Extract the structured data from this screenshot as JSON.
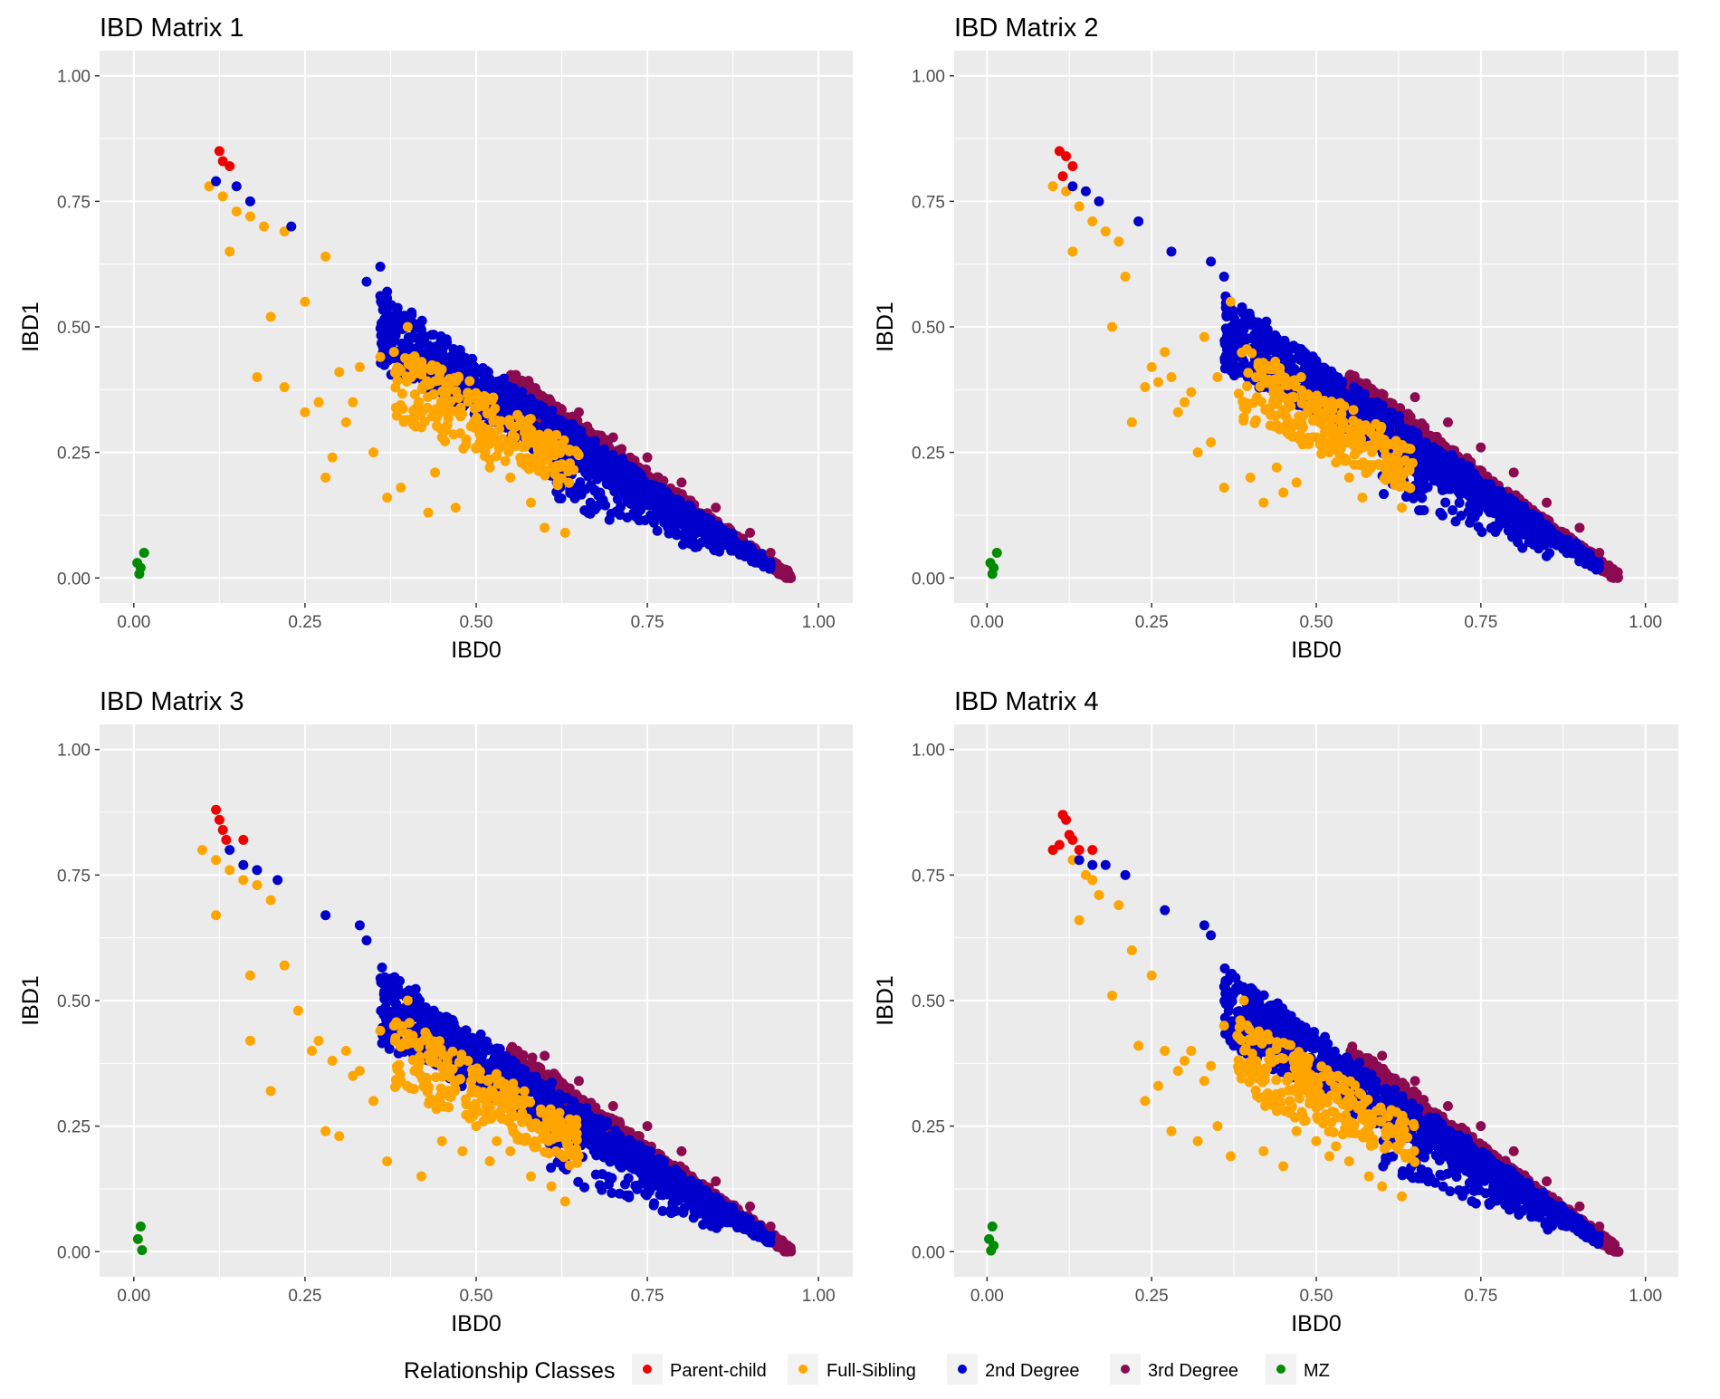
{
  "chart_data": [
    {
      "type": "scatter",
      "title": "IBD Matrix 1",
      "xlabel": "IBD0",
      "ylabel": "IBD1",
      "xlim": [
        -0.05,
        1.05
      ],
      "ylim": [
        -0.05,
        1.05
      ],
      "xticks": [
        0.0,
        0.25,
        0.5,
        0.75,
        1.0
      ],
      "xtick_labels": [
        "0.00",
        "0.25",
        "0.50",
        "0.75",
        "1.00"
      ],
      "yticks": [
        0.0,
        0.25,
        0.5,
        0.75,
        1.0
      ],
      "ytick_labels": [
        "0.00",
        "0.25",
        "0.50",
        "0.75",
        "1.00"
      ],
      "grid": true,
      "series": [
        {
          "name": "Parent-child",
          "x": [
            0.125,
            0.13,
            0.14
          ],
          "y": [
            0.85,
            0.83,
            0.82
          ]
        },
        {
          "name": "Full-Sibling",
          "x": [
            0.11,
            0.13,
            0.15,
            0.17,
            0.19,
            0.22,
            0.14,
            0.28,
            0.25,
            0.2,
            0.18,
            0.3,
            0.32,
            0.25,
            0.22,
            0.28,
            0.35,
            0.37,
            0.4,
            0.42,
            0.45,
            0.5,
            0.52,
            0.47,
            0.55,
            0.58,
            0.6,
            0.63,
            0.38,
            0.43,
            0.29,
            0.33,
            0.36,
            0.31,
            0.27,
            0.39,
            0.46,
            0.51,
            0.53,
            0.44
          ],
          "y": [
            0.78,
            0.76,
            0.73,
            0.72,
            0.7,
            0.69,
            0.65,
            0.64,
            0.55,
            0.52,
            0.4,
            0.41,
            0.35,
            0.33,
            0.38,
            0.2,
            0.25,
            0.16,
            0.5,
            0.3,
            0.28,
            0.26,
            0.22,
            0.14,
            0.2,
            0.15,
            0.1,
            0.09,
            0.45,
            0.13,
            0.24,
            0.42,
            0.44,
            0.31,
            0.35,
            0.18,
            0.33,
            0.3,
            0.27,
            0.21
          ]
        },
        {
          "name": "2nd Degree",
          "x": [
            0.12,
            0.15,
            0.17,
            0.23,
            0.36,
            0.34,
            0.37
          ],
          "y": [
            0.79,
            0.78,
            0.75,
            0.7,
            0.62,
            0.59,
            0.57
          ]
        },
        {
          "name": "3rd Degree",
          "x": [
            0.65,
            0.7,
            0.75,
            0.8,
            0.85,
            0.9,
            0.93,
            0.95
          ],
          "y": [
            0.33,
            0.28,
            0.24,
            0.19,
            0.14,
            0.09,
            0.05,
            0.01
          ]
        },
        {
          "name": "MZ",
          "x": [
            0.005,
            0.01,
            0.015,
            0.008
          ],
          "y": [
            0.03,
            0.02,
            0.05,
            0.008
          ]
        }
      ]
    },
    {
      "type": "scatter",
      "title": "IBD Matrix 2",
      "xlabel": "IBD0",
      "ylabel": "IBD1",
      "xlim": [
        -0.05,
        1.05
      ],
      "ylim": [
        -0.05,
        1.05
      ],
      "xticks": [
        0.0,
        0.25,
        0.5,
        0.75,
        1.0
      ],
      "xtick_labels": [
        "0.00",
        "0.25",
        "0.50",
        "0.75",
        "1.00"
      ],
      "yticks": [
        0.0,
        0.25,
        0.5,
        0.75,
        1.0
      ],
      "ytick_labels": [
        "0.00",
        "0.25",
        "0.50",
        "0.75",
        "1.00"
      ],
      "grid": true,
      "series": [
        {
          "name": "Parent-child",
          "x": [
            0.11,
            0.12,
            0.13,
            0.115
          ],
          "y": [
            0.85,
            0.84,
            0.82,
            0.8
          ]
        },
        {
          "name": "Full-Sibling",
          "x": [
            0.1,
            0.12,
            0.14,
            0.16,
            0.18,
            0.2,
            0.13,
            0.21,
            0.19,
            0.25,
            0.28,
            0.24,
            0.3,
            0.27,
            0.32,
            0.36,
            0.4,
            0.42,
            0.45,
            0.48,
            0.5,
            0.53,
            0.55,
            0.57,
            0.63,
            0.37,
            0.33,
            0.26,
            0.22,
            0.44,
            0.47,
            0.52,
            0.35,
            0.39,
            0.29,
            0.41,
            0.46,
            0.54,
            0.31,
            0.34
          ],
          "y": [
            0.78,
            0.77,
            0.74,
            0.71,
            0.69,
            0.67,
            0.65,
            0.6,
            0.5,
            0.42,
            0.4,
            0.38,
            0.35,
            0.45,
            0.25,
            0.18,
            0.2,
            0.15,
            0.17,
            0.3,
            0.28,
            0.23,
            0.2,
            0.16,
            0.14,
            0.55,
            0.48,
            0.39,
            0.31,
            0.22,
            0.19,
            0.25,
            0.4,
            0.32,
            0.33,
            0.36,
            0.29,
            0.24,
            0.37,
            0.27
          ]
        },
        {
          "name": "2nd Degree",
          "x": [
            0.13,
            0.15,
            0.17,
            0.23,
            0.28,
            0.34,
            0.36
          ],
          "y": [
            0.78,
            0.77,
            0.75,
            0.71,
            0.65,
            0.63,
            0.6
          ]
        },
        {
          "name": "3rd Degree",
          "x": [
            0.65,
            0.7,
            0.75,
            0.8,
            0.85,
            0.9,
            0.93,
            0.95
          ],
          "y": [
            0.36,
            0.31,
            0.26,
            0.21,
            0.15,
            0.1,
            0.05,
            0.01
          ]
        },
        {
          "name": "MZ",
          "x": [
            0.005,
            0.01,
            0.015,
            0.008
          ],
          "y": [
            0.03,
            0.02,
            0.05,
            0.008
          ]
        }
      ]
    },
    {
      "type": "scatter",
      "title": "IBD Matrix 3",
      "xlabel": "IBD0",
      "ylabel": "IBD1",
      "xlim": [
        -0.05,
        1.05
      ],
      "ylim": [
        -0.05,
        1.05
      ],
      "xticks": [
        0.0,
        0.25,
        0.5,
        0.75,
        1.0
      ],
      "xtick_labels": [
        "0.00",
        "0.25",
        "0.50",
        "0.75",
        "1.00"
      ],
      "yticks": [
        0.0,
        0.25,
        0.5,
        0.75,
        1.0
      ],
      "ytick_labels": [
        "0.00",
        "0.25",
        "0.50",
        "0.75",
        "1.00"
      ],
      "grid": true,
      "series": [
        {
          "name": "Parent-child",
          "x": [
            0.12,
            0.125,
            0.13,
            0.135,
            0.16
          ],
          "y": [
            0.88,
            0.86,
            0.84,
            0.82,
            0.82
          ]
        },
        {
          "name": "Full-Sibling",
          "x": [
            0.1,
            0.12,
            0.14,
            0.16,
            0.18,
            0.2,
            0.12,
            0.17,
            0.22,
            0.24,
            0.2,
            0.17,
            0.26,
            0.28,
            0.3,
            0.32,
            0.35,
            0.37,
            0.4,
            0.42,
            0.45,
            0.48,
            0.5,
            0.52,
            0.55,
            0.58,
            0.61,
            0.63,
            0.38,
            0.44,
            0.29,
            0.33,
            0.36,
            0.39,
            0.27,
            0.46,
            0.49,
            0.53,
            0.31,
            0.41
          ],
          "y": [
            0.8,
            0.78,
            0.76,
            0.74,
            0.73,
            0.7,
            0.67,
            0.55,
            0.57,
            0.48,
            0.32,
            0.42,
            0.4,
            0.24,
            0.23,
            0.35,
            0.3,
            0.18,
            0.5,
            0.15,
            0.22,
            0.2,
            0.25,
            0.18,
            0.2,
            0.15,
            0.13,
            0.1,
            0.45,
            0.3,
            0.38,
            0.36,
            0.44,
            0.34,
            0.42,
            0.31,
            0.27,
            0.22,
            0.4,
            0.36
          ]
        },
        {
          "name": "2nd Degree",
          "x": [
            0.14,
            0.16,
            0.18,
            0.21,
            0.28,
            0.33,
            0.34
          ],
          "y": [
            0.8,
            0.77,
            0.76,
            0.74,
            0.67,
            0.65,
            0.62
          ]
        },
        {
          "name": "3rd Degree",
          "x": [
            0.6,
            0.65,
            0.7,
            0.75,
            0.8,
            0.85,
            0.9,
            0.93,
            0.95
          ],
          "y": [
            0.39,
            0.34,
            0.29,
            0.25,
            0.2,
            0.14,
            0.09,
            0.05,
            0.01
          ]
        },
        {
          "name": "MZ",
          "x": [
            0.006,
            0.01,
            0.012
          ],
          "y": [
            0.025,
            0.05,
            0.003
          ]
        }
      ]
    },
    {
      "type": "scatter",
      "title": "IBD Matrix 4",
      "xlabel": "IBD0",
      "ylabel": "IBD1",
      "xlim": [
        -0.05,
        1.05
      ],
      "ylim": [
        -0.05,
        1.05
      ],
      "xticks": [
        0.0,
        0.25,
        0.5,
        0.75,
        1.0
      ],
      "xtick_labels": [
        "0.00",
        "0.25",
        "0.50",
        "0.75",
        "1.00"
      ],
      "yticks": [
        0.0,
        0.25,
        0.5,
        0.75,
        1.0
      ],
      "ytick_labels": [
        "0.00",
        "0.25",
        "0.50",
        "0.75",
        "1.00"
      ],
      "grid": true,
      "series": [
        {
          "name": "Parent-child",
          "x": [
            0.1,
            0.11,
            0.115,
            0.12,
            0.125,
            0.13,
            0.14,
            0.16
          ],
          "y": [
            0.8,
            0.81,
            0.87,
            0.86,
            0.83,
            0.82,
            0.8,
            0.8
          ]
        },
        {
          "name": "Full-Sibling",
          "x": [
            0.13,
            0.15,
            0.16,
            0.17,
            0.14,
            0.2,
            0.22,
            0.19,
            0.25,
            0.28,
            0.24,
            0.23,
            0.27,
            0.3,
            0.32,
            0.35,
            0.37,
            0.39,
            0.42,
            0.45,
            0.48,
            0.5,
            0.52,
            0.55,
            0.58,
            0.6,
            0.63,
            0.36,
            0.29,
            0.33,
            0.26,
            0.38,
            0.41,
            0.44,
            0.47,
            0.31,
            0.34,
            0.53,
            0.4,
            0.46
          ],
          "y": [
            0.78,
            0.75,
            0.74,
            0.71,
            0.66,
            0.69,
            0.6,
            0.51,
            0.55,
            0.24,
            0.3,
            0.41,
            0.4,
            0.38,
            0.22,
            0.25,
            0.19,
            0.5,
            0.2,
            0.17,
            0.27,
            0.22,
            0.19,
            0.18,
            0.15,
            0.13,
            0.11,
            0.45,
            0.36,
            0.34,
            0.33,
            0.43,
            0.31,
            0.28,
            0.24,
            0.4,
            0.37,
            0.21,
            0.42,
            0.3
          ]
        },
        {
          "name": "2nd Degree",
          "x": [
            0.14,
            0.16,
            0.18,
            0.21,
            0.27,
            0.33,
            0.34
          ],
          "y": [
            0.78,
            0.77,
            0.77,
            0.75,
            0.68,
            0.65,
            0.63
          ]
        },
        {
          "name": "3rd Degree",
          "x": [
            0.6,
            0.65,
            0.7,
            0.75,
            0.8,
            0.85,
            0.9,
            0.93,
            0.95
          ],
          "y": [
            0.39,
            0.34,
            0.29,
            0.25,
            0.2,
            0.14,
            0.09,
            0.05,
            0.01
          ]
        },
        {
          "name": "MZ",
          "x": [
            0.003,
            0.008,
            0.01,
            0.006
          ],
          "y": [
            0.025,
            0.05,
            0.012,
            0.002
          ]
        }
      ]
    }
  ],
  "legend": {
    "title": "Relationship Classes",
    "position": "bottom",
    "items": [
      {
        "label": "Parent-child",
        "color": "#ee0000"
      },
      {
        "label": "Full-Sibling",
        "color": "#ffa500"
      },
      {
        "label": "2nd Degree",
        "color": "#0000cd"
      },
      {
        "label": "3rd Degree",
        "color": "#8b0a50"
      },
      {
        "label": "MZ",
        "color": "#008b00"
      }
    ]
  },
  "colors": {
    "panel_background": "#ebebeb",
    "grid_line": "#ffffff",
    "tick_text": "#4d4d4d",
    "tick_mark": "#333333"
  }
}
